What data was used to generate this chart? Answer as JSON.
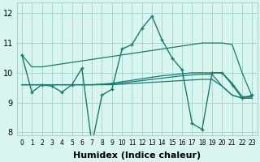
{
  "x": [
    0,
    1,
    2,
    3,
    4,
    5,
    6,
    7,
    8,
    9,
    10,
    11,
    12,
    13,
    14,
    15,
    16,
    17,
    18,
    19,
    20,
    21,
    22,
    23
  ],
  "humidex_main": [
    10.6,
    9.35,
    9.6,
    9.55,
    9.35,
    9.6,
    10.15,
    7.6,
    9.25,
    9.45,
    10.8,
    10.95,
    11.5,
    11.9,
    11.1,
    10.5,
    10.1,
    8.3,
    8.1,
    10.0,
    10.0,
    9.6,
    9.15,
    9.25
  ],
  "smooth_upper": [
    10.6,
    10.2,
    10.2,
    10.25,
    10.3,
    10.35,
    10.4,
    10.45,
    10.5,
    10.55,
    10.6,
    10.65,
    10.7,
    10.75,
    10.8,
    10.85,
    10.9,
    10.95,
    11.0,
    11.0,
    11.0,
    10.95,
    10.0,
    9.2
  ],
  "trend_high": [
    9.6,
    9.6,
    9.6,
    9.6,
    9.6,
    9.6,
    9.6,
    9.6,
    9.62,
    9.65,
    9.7,
    9.75,
    9.8,
    9.85,
    9.9,
    9.93,
    9.97,
    10.0,
    10.0,
    10.0,
    10.0,
    9.65,
    9.2,
    9.2
  ],
  "trend_mid": [
    9.6,
    9.6,
    9.6,
    9.6,
    9.6,
    9.6,
    9.6,
    9.6,
    9.61,
    9.63,
    9.66,
    9.7,
    9.74,
    9.78,
    9.82,
    9.86,
    9.9,
    9.93,
    9.95,
    9.95,
    9.55,
    9.25,
    9.15,
    9.15
  ],
  "trend_low": [
    9.6,
    9.6,
    9.6,
    9.6,
    9.6,
    9.6,
    9.6,
    9.6,
    9.6,
    9.6,
    9.62,
    9.64,
    9.66,
    9.68,
    9.7,
    9.72,
    9.74,
    9.76,
    9.78,
    9.78,
    9.55,
    9.25,
    9.15,
    9.15
  ],
  "color": "#1a7a6e",
  "bg_color": "#d8f5f0",
  "grid_color": "#a8d8d0",
  "ylim": [
    7.9,
    12.35
  ],
  "yticks": [
    8,
    9,
    10,
    11,
    12
  ],
  "xlabel": "Humidex (Indice chaleur)",
  "xlabel_fontsize": 8
}
